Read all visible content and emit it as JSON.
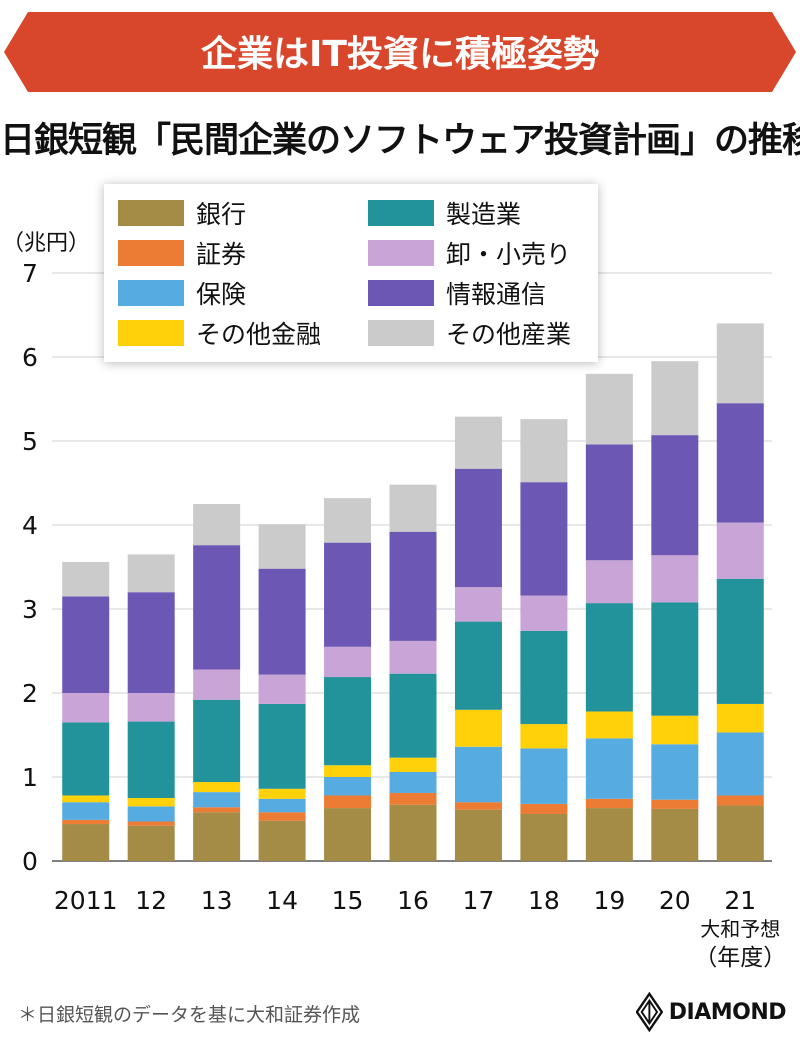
{
  "banner": {
    "title": "企業はIT投資に積極姿勢",
    "color": "#D8472C"
  },
  "subtitle": "日銀短観「民間企業のソフトウェア投資計画」の推移",
  "chart_data": {
    "type": "bar",
    "stacked": true,
    "ylabel": "（兆円）",
    "xlabel": "（年度）",
    "ylim": [
      0,
      7
    ],
    "yticks": [
      0,
      1,
      2,
      3,
      4,
      5,
      6,
      7
    ],
    "grid": true,
    "legend_position": "top-left",
    "categories": [
      "2011",
      "12",
      "13",
      "14",
      "15",
      "16",
      "17",
      "18",
      "19",
      "20",
      "21"
    ],
    "annotations": [
      {
        "category": "21",
        "text": "大和予想"
      }
    ],
    "series": [
      {
        "name": "銀行",
        "color": "#A48B46",
        "values": [
          0.44,
          0.42,
          0.58,
          0.48,
          0.63,
          0.67,
          0.61,
          0.56,
          0.63,
          0.62,
          0.66
        ]
      },
      {
        "name": "証券",
        "color": "#EC7B33",
        "values": [
          0.05,
          0.05,
          0.06,
          0.1,
          0.15,
          0.14,
          0.09,
          0.12,
          0.11,
          0.11,
          0.12
        ]
      },
      {
        "name": "保険",
        "color": "#56ACE0",
        "values": [
          0.21,
          0.18,
          0.18,
          0.16,
          0.22,
          0.25,
          0.66,
          0.66,
          0.72,
          0.66,
          0.75
        ]
      },
      {
        "name": "その他金融",
        "color": "#FFD10A",
        "values": [
          0.08,
          0.1,
          0.12,
          0.12,
          0.14,
          0.17,
          0.44,
          0.29,
          0.32,
          0.34,
          0.34
        ]
      },
      {
        "name": "製造業",
        "color": "#22929B",
        "values": [
          0.87,
          0.91,
          0.98,
          1.01,
          1.05,
          1.0,
          1.05,
          1.11,
          1.29,
          1.35,
          1.49
        ]
      },
      {
        "name": "卸・小売り",
        "color": "#C9A4D6",
        "values": [
          0.35,
          0.34,
          0.36,
          0.35,
          0.36,
          0.39,
          0.41,
          0.42,
          0.51,
          0.56,
          0.67
        ]
      },
      {
        "name": "情報通信",
        "color": "#6C58B4",
        "values": [
          1.15,
          1.2,
          1.48,
          1.26,
          1.24,
          1.3,
          1.41,
          1.35,
          1.38,
          1.43,
          1.42
        ]
      },
      {
        "name": "その他産業",
        "color": "#CBCBCB",
        "values": [
          0.41,
          0.45,
          0.49,
          0.53,
          0.53,
          0.56,
          0.62,
          0.75,
          0.84,
          0.88,
          0.95
        ]
      }
    ]
  },
  "footer": {
    "source": "＊日銀短観のデータを基に大和証券作成",
    "brand": "DIAMOND"
  }
}
